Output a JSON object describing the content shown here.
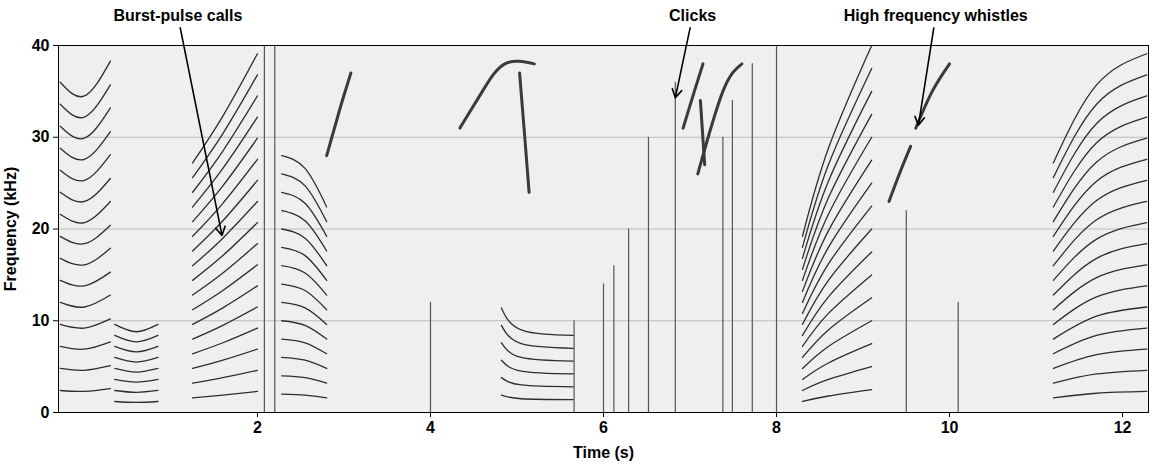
{
  "chart_data": {
    "type": "spectrogram",
    "x_label": "Time (s)",
    "y_label": "Frequency (kHz)",
    "xlim": [
      -0.3,
      12.3
    ],
    "xticks": [
      2,
      4,
      6,
      8,
      10,
      12
    ],
    "ylim": [
      0,
      40
    ],
    "yticks": [
      0,
      10,
      20,
      30,
      40
    ],
    "grid": "y",
    "burst_pulse_calls": [
      {
        "x": [
          -0.28,
          0.0,
          0.3
        ],
        "harmonics": [
          [
            2.4,
            2.3,
            2.6
          ],
          [
            4.8,
            4.6,
            5.1
          ],
          [
            7.2,
            6.9,
            7.7
          ],
          [
            9.6,
            9.2,
            10.2
          ],
          [
            12.0,
            11.5,
            12.8
          ],
          [
            14.4,
            13.8,
            15.3
          ],
          [
            16.8,
            16.1,
            17.9
          ],
          [
            19.2,
            18.4,
            20.4
          ],
          [
            21.6,
            20.7,
            23.0
          ],
          [
            24.0,
            23.0,
            25.5
          ],
          [
            26.4,
            25.3,
            28.1
          ],
          [
            28.8,
            27.6,
            30.6
          ],
          [
            31.2,
            29.9,
            33.2
          ],
          [
            33.6,
            32.2,
            35.7
          ],
          [
            36.0,
            34.5,
            38.3
          ]
        ]
      },
      {
        "x": [
          0.35,
          0.6,
          0.85
        ],
        "harmonics": [
          [
            1.2,
            1.1,
            1.2
          ],
          [
            2.4,
            2.2,
            2.4
          ],
          [
            3.6,
            3.3,
            3.6
          ],
          [
            4.8,
            4.4,
            4.8
          ],
          [
            6.0,
            5.5,
            6.0
          ],
          [
            7.2,
            6.6,
            7.2
          ],
          [
            8.4,
            7.7,
            8.4
          ],
          [
            9.6,
            8.8,
            9.6
          ]
        ]
      },
      {
        "x": [
          1.25,
          1.6,
          2.0
        ],
        "harmonics": [
          [
            1.6,
            1.9,
            2.3
          ],
          [
            3.2,
            3.8,
            4.6
          ],
          [
            4.8,
            5.7,
            6.9
          ],
          [
            6.4,
            7.6,
            9.2
          ],
          [
            8.0,
            9.5,
            11.5
          ],
          [
            9.6,
            11.4,
            13.8
          ],
          [
            11.2,
            13.3,
            16.1
          ],
          [
            12.8,
            15.2,
            18.4
          ],
          [
            14.4,
            17.1,
            20.7
          ],
          [
            16.0,
            19.0,
            23.0
          ],
          [
            17.6,
            20.9,
            25.3
          ],
          [
            19.2,
            22.8,
            27.6
          ],
          [
            20.8,
            24.7,
            29.9
          ],
          [
            22.4,
            26.6,
            32.2
          ],
          [
            24.0,
            28.5,
            34.5
          ],
          [
            25.6,
            30.4,
            36.8
          ],
          [
            27.2,
            32.3,
            39.1
          ]
        ]
      },
      {
        "x": [
          2.28,
          2.55,
          2.8
        ],
        "harmonics": [
          [
            2.0,
            1.9,
            1.6
          ],
          [
            4.0,
            3.8,
            3.2
          ],
          [
            6.0,
            5.7,
            4.8
          ],
          [
            8.0,
            7.6,
            6.4
          ],
          [
            10.0,
            9.5,
            8.0
          ],
          [
            12.0,
            11.4,
            9.6
          ],
          [
            14.0,
            13.3,
            11.2
          ],
          [
            16.0,
            15.2,
            12.8
          ],
          [
            18.0,
            17.1,
            14.4
          ],
          [
            20.0,
            19.0,
            16.0
          ],
          [
            22.0,
            20.9,
            17.6
          ],
          [
            24.0,
            22.8,
            19.2
          ],
          [
            26.0,
            24.7,
            20.8
          ],
          [
            28.0,
            26.6,
            22.4
          ]
        ]
      },
      {
        "x": [
          4.82,
          5.05,
          5.65
        ],
        "harmonics": [
          [
            1.9,
            1.5,
            1.4
          ],
          [
            3.8,
            3.0,
            2.8
          ],
          [
            5.7,
            4.5,
            4.2
          ],
          [
            7.6,
            6.0,
            5.6
          ],
          [
            9.5,
            7.5,
            7.0
          ],
          [
            11.4,
            9.0,
            8.4
          ]
        ]
      },
      {
        "x": [
          8.3,
          8.6,
          9.1
        ],
        "harmonics": [
          [
            1.2,
            1.8,
            2.5
          ],
          [
            2.4,
            3.6,
            5.0
          ],
          [
            3.6,
            5.4,
            7.5
          ],
          [
            4.8,
            7.2,
            10.0
          ],
          [
            6.0,
            9.0,
            12.5
          ],
          [
            7.2,
            10.8,
            15.0
          ],
          [
            8.4,
            12.6,
            17.5
          ],
          [
            9.6,
            14.4,
            20.0
          ],
          [
            10.8,
            16.2,
            22.5
          ],
          [
            12.0,
            18.0,
            25.0
          ],
          [
            13.2,
            19.8,
            27.5
          ],
          [
            14.4,
            21.6,
            30.0
          ],
          [
            15.6,
            23.4,
            32.5
          ],
          [
            16.8,
            25.2,
            35.0
          ],
          [
            18.0,
            27.0,
            37.5
          ],
          [
            19.2,
            28.8,
            40.0
          ]
        ]
      },
      {
        "x": [
          11.2,
          11.7,
          12.28
        ],
        "harmonics": [
          [
            1.6,
            2.1,
            2.3
          ],
          [
            3.2,
            4.2,
            4.6
          ],
          [
            4.8,
            6.3,
            6.9
          ],
          [
            6.4,
            8.4,
            9.2
          ],
          [
            8.0,
            10.5,
            11.5
          ],
          [
            9.6,
            12.6,
            13.8
          ],
          [
            11.2,
            14.7,
            16.1
          ],
          [
            12.8,
            16.8,
            18.4
          ],
          [
            14.4,
            18.9,
            20.7
          ],
          [
            16.0,
            21.0,
            23.0
          ],
          [
            17.6,
            23.1,
            25.3
          ],
          [
            19.2,
            25.2,
            27.6
          ],
          [
            20.8,
            27.3,
            29.9
          ],
          [
            22.4,
            29.4,
            32.2
          ],
          [
            24.0,
            31.5,
            34.5
          ],
          [
            25.6,
            33.6,
            36.8
          ],
          [
            27.2,
            35.7,
            39.1
          ]
        ]
      }
    ],
    "whistles": [
      {
        "x": [
          2.8,
          2.95,
          3.08
        ],
        "y": [
          28,
          33,
          37
        ]
      },
      {
        "x": [
          4.34,
          4.6,
          4.86,
          5.2
        ],
        "y": [
          31,
          35,
          38,
          38
        ]
      },
      {
        "x": [
          5.03,
          5.09,
          5.14
        ],
        "y": [
          37,
          30,
          24
        ]
      },
      {
        "x": [
          6.92,
          7.05,
          7.15
        ],
        "y": [
          31,
          35,
          38
        ]
      },
      {
        "x": [
          7.09,
          7.38,
          7.6
        ],
        "y": [
          26,
          35,
          38
        ]
      },
      {
        "x": [
          7.12,
          7.17
        ],
        "y": [
          34,
          27
        ]
      },
      {
        "x": [
          9.3,
          9.42,
          9.55
        ],
        "y": [
          23,
          26,
          29
        ]
      },
      {
        "x": [
          9.61,
          9.8,
          10.0
        ],
        "y": [
          31,
          35,
          38
        ]
      }
    ],
    "clicks": {
      "x": [
        2.08,
        2.2,
        4.0,
        5.66,
        6.0,
        6.12,
        6.29,
        6.52,
        6.83,
        7.38,
        7.49,
        7.72,
        8.0,
        9.5,
        10.1
      ],
      "top": [
        40,
        40,
        12,
        10,
        14,
        16,
        20,
        30,
        36,
        30,
        34,
        38,
        40,
        22,
        12
      ]
    },
    "annotations": [
      {
        "text": "Burst-pulse calls",
        "x": 1.08,
        "y": 43.2,
        "arrow_x": 1.59,
        "arrow_y": 19.3
      },
      {
        "text": "Clicks",
        "x": 7.03,
        "y": 43.2,
        "arrow_x": 6.83,
        "arrow_y": 34.3
      },
      {
        "text": "High frequency whistles",
        "x": 9.84,
        "y": 43.2,
        "arrow_x": 9.64,
        "arrow_y": 31.3
      }
    ]
  }
}
